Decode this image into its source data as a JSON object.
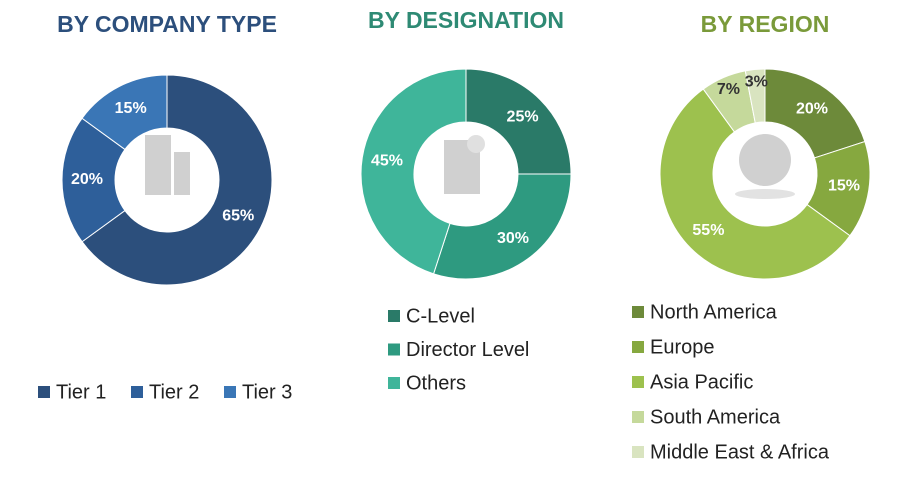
{
  "chart_data": [
    {
      "type": "pie",
      "title": "BY COMPANY TYPE",
      "title_color": "#2c4f7c",
      "categories": [
        "Tier 1",
        "Tier 2",
        "Tier 3"
      ],
      "values": [
        65,
        20,
        15
      ],
      "value_labels": [
        "65%",
        "20%",
        "15%"
      ],
      "colors": [
        "#2c4f7c",
        "#2e5f9a",
        "#3a76b6"
      ],
      "legend": "bottom"
    },
    {
      "type": "pie",
      "title": "BY DESIGNATION",
      "title_color": "#2e8a74",
      "categories": [
        "C-Level",
        "Director Level",
        "Others"
      ],
      "values": [
        25,
        30,
        45
      ],
      "value_labels": [
        "25%",
        "30%",
        "45%"
      ],
      "colors": [
        "#2a7a68",
        "#2e9a80",
        "#3fb59a"
      ],
      "legend": "bottom"
    },
    {
      "type": "pie",
      "title": "BY REGION",
      "title_color": "#7a9a3a",
      "categories": [
        "North America",
        "Europe",
        "Asia Pacific",
        "South America",
        "Middle East & Africa"
      ],
      "values": [
        20,
        15,
        55,
        7,
        3
      ],
      "value_labels": [
        "20%",
        "15%",
        "55%",
        "7%",
        "3%"
      ],
      "colors": [
        "#6d8a3a",
        "#86a83f",
        "#9dc14e",
        "#c5d99b",
        "#d9e4c0"
      ],
      "legend": "bottom"
    }
  ]
}
